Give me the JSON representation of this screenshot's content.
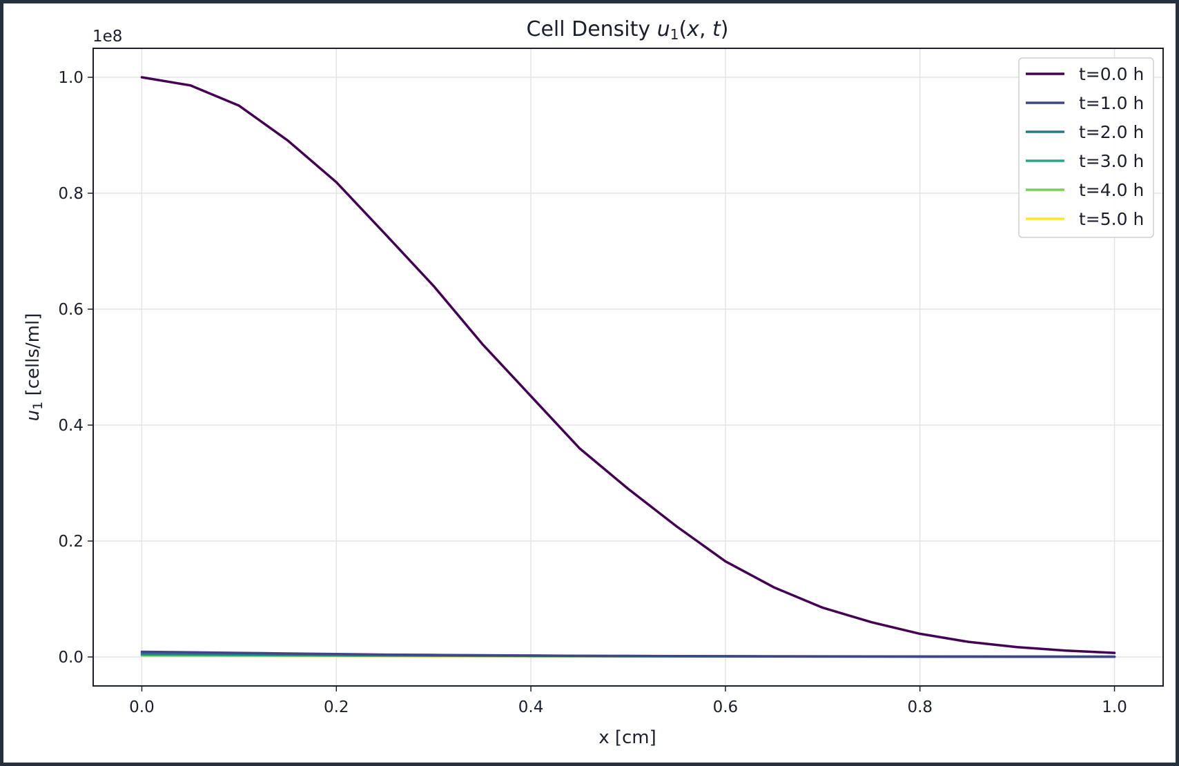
{
  "chart_data": {
    "type": "line",
    "title_prefix": "Cell Density ",
    "title_math": "u",
    "title_sub": "1",
    "title_suffix_open": "(",
    "title_var_x": "x",
    "title_comma": ", ",
    "title_var_t": "t",
    "title_suffix_close": ")",
    "xlabel": "x [cm]",
    "ylabel_math": "u",
    "ylabel_sub": "1",
    "ylabel_rest": " [cells/ml]",
    "y_offset_label": "1e8",
    "xlim": [
      -0.05,
      1.05
    ],
    "ylim": [
      -0.05,
      1.05
    ],
    "xticks": [
      0.0,
      0.2,
      0.4,
      0.6,
      0.8,
      1.0
    ],
    "xtick_labels": [
      "0.0",
      "0.2",
      "0.4",
      "0.6",
      "0.8",
      "1.0"
    ],
    "yticks": [
      0.0,
      0.2,
      0.4,
      0.6,
      0.8,
      1.0
    ],
    "ytick_labels": [
      "0.0",
      "0.2",
      "0.4",
      "0.6",
      "0.8",
      "1.0"
    ],
    "grid": true,
    "legend_position": "top-right",
    "x": [
      0.0,
      0.05,
      0.1,
      0.15,
      0.2,
      0.25,
      0.3,
      0.35,
      0.4,
      0.45,
      0.5,
      0.55,
      0.6,
      0.65,
      0.7,
      0.75,
      0.8,
      0.85,
      0.9,
      0.95,
      1.0
    ],
    "series": [
      {
        "name": "t=0.0 h",
        "color": "#440154",
        "values": [
          1.0,
          0.986,
          0.951,
          0.891,
          0.819,
          0.73,
          0.64,
          0.54,
          0.45,
          0.36,
          0.29,
          0.225,
          0.165,
          0.12,
          0.085,
          0.06,
          0.04,
          0.026,
          0.017,
          0.011,
          0.007
        ]
      },
      {
        "name": "t=1.0 h",
        "color": "#414487",
        "values": [
          0.009,
          0.008,
          0.007,
          0.006,
          0.005,
          0.004,
          0.0035,
          0.003,
          0.0025,
          0.002,
          0.0018,
          0.0015,
          0.0013,
          0.0011,
          0.001,
          0.0009,
          0.0008,
          0.0007,
          0.0006,
          0.0005,
          0.0005
        ]
      },
      {
        "name": "t=2.0 h",
        "color": "#2a788e",
        "values": [
          0.006,
          0.0055,
          0.005,
          0.0045,
          0.004,
          0.0035,
          0.003,
          0.0026,
          0.0022,
          0.0019,
          0.0016,
          0.0014,
          0.0012,
          0.001,
          0.0009,
          0.0008,
          0.0007,
          0.0006,
          0.0005,
          0.0005,
          0.0004
        ]
      },
      {
        "name": "t=3.0 h",
        "color": "#22a884",
        "values": [
          0.004,
          0.0037,
          0.0034,
          0.0031,
          0.0028,
          0.0025,
          0.0022,
          0.002,
          0.0017,
          0.0015,
          0.0013,
          0.0012,
          0.001,
          0.0009,
          0.0008,
          0.0007,
          0.0006,
          0.0005,
          0.0005,
          0.0004,
          0.0004
        ]
      },
      {
        "name": "t=4.0 h",
        "color": "#7ad151",
        "values": [
          0.003,
          0.0028,
          0.0026,
          0.0024,
          0.0022,
          0.002,
          0.0018,
          0.0016,
          0.0014,
          0.0013,
          0.0011,
          0.001,
          0.0009,
          0.0008,
          0.0007,
          0.0006,
          0.0005,
          0.0005,
          0.0004,
          0.0004,
          0.0003
        ]
      },
      {
        "name": "t=5.0 h",
        "color": "#fde725",
        "values": [
          0.002,
          0.0019,
          0.0018,
          0.0017,
          0.0016,
          0.0015,
          0.0014,
          0.0013,
          0.0012,
          0.0011,
          0.001,
          0.0009,
          0.0008,
          0.0007,
          0.0006,
          0.0006,
          0.0005,
          0.0005,
          0.0004,
          0.0004,
          0.0003
        ]
      }
    ]
  }
}
